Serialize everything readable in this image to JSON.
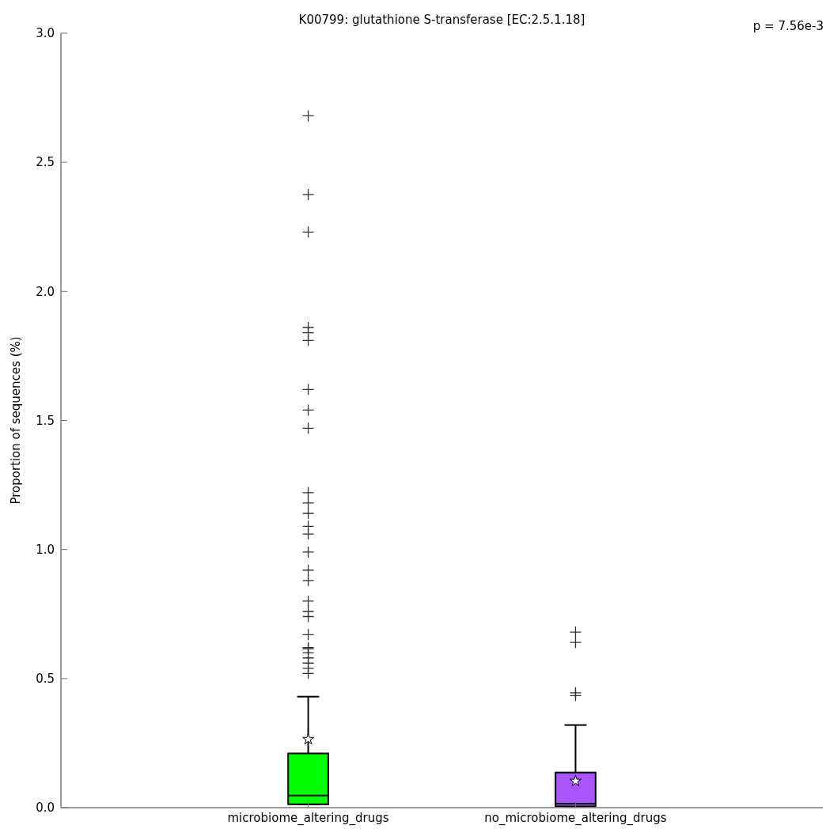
{
  "chart_data": {
    "type": "box",
    "title": "K00799: glutathione S-transferase [EC:2.5.1.18]",
    "ylabel": "Proportion of sequences (%)",
    "categories": [
      "microbiome_altering_drugs",
      "no_microbiome_altering_drugs"
    ],
    "colors": [
      "#00ff00",
      "#aa55ff"
    ],
    "boxes": [
      {
        "low": 0.013,
        "q1": 0.013,
        "median": 0.047,
        "q3": 0.21,
        "high": 0.43,
        "mean": 0.265,
        "outliers": [
          2.68,
          2.375,
          2.23,
          1.86,
          1.84,
          1.81,
          1.62,
          1.54,
          1.47,
          1.22,
          1.18,
          1.14,
          1.09,
          1.06,
          0.99,
          0.92,
          0.88,
          0.8,
          0.76,
          0.74,
          0.67,
          0.62,
          0.616,
          0.6,
          0.58,
          0.56,
          0.54,
          0.52
        ]
      },
      {
        "low": 0.005,
        "q1": 0.005,
        "median": 0.015,
        "q3": 0.136,
        "high": 0.32,
        "mean": 0.103,
        "outliers": [
          0.68,
          0.64,
          0.445,
          0.434
        ]
      }
    ],
    "ylim": [
      0,
      3
    ],
    "yticks": [
      {
        "value": 0,
        "label": "0.0"
      },
      {
        "value": 0.5,
        "label": "0.5"
      },
      {
        "value": 1,
        "label": "1.0"
      },
      {
        "value": 1.5,
        "label": "1.5"
      },
      {
        "value": 2,
        "label": "2.0"
      },
      {
        "value": 2.5,
        "label": "2.5"
      },
      {
        "value": 3,
        "label": "3.0"
      }
    ],
    "grid": false,
    "annotations": [
      "p = 7.56e-3"
    ]
  }
}
